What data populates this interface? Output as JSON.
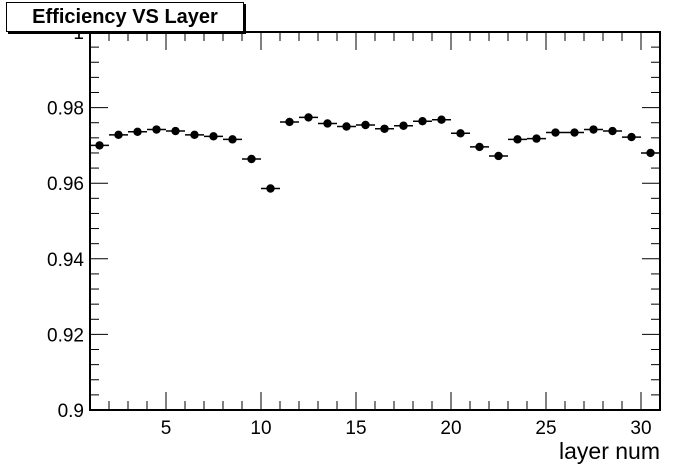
{
  "chart_data": {
    "type": "scatter",
    "title": "Efficiency VS Layer",
    "xlabel": "layer num",
    "ylabel": "",
    "xlim": [
      1,
      31
    ],
    "ylim": [
      0.9,
      1.0
    ],
    "xticks": [
      5,
      10,
      15,
      20,
      25,
      30
    ],
    "yticks": [
      0.9,
      0.92,
      0.94,
      0.96,
      0.98,
      1
    ],
    "ytick_labels": [
      "0.9",
      "0.92",
      "0.94",
      "0.96",
      "0.98",
      "1"
    ],
    "grid": false,
    "legend": "none",
    "marker_color": "#000000",
    "x_error_half_width": 0.5,
    "series": [
      {
        "x": [
          1.5,
          2.5,
          3.5,
          4.5,
          5.5,
          6.5,
          7.5,
          8.5,
          9.5,
          10.5,
          11.5,
          12.5,
          13.5,
          14.5,
          15.5,
          16.5,
          17.5,
          18.5,
          19.5,
          20.5,
          21.5,
          22.5,
          23.5,
          24.5,
          25.5,
          26.5,
          27.5,
          28.5,
          29.5,
          30.5
        ],
        "y": [
          0.97,
          0.9728,
          0.9736,
          0.9742,
          0.9738,
          0.9728,
          0.9724,
          0.9716,
          0.9664,
          0.9586,
          0.9762,
          0.9774,
          0.9758,
          0.975,
          0.9754,
          0.9744,
          0.9752,
          0.9764,
          0.9768,
          0.9732,
          0.9696,
          0.9672,
          0.9716,
          0.9718,
          0.9734,
          0.9734,
          0.9742,
          0.9738,
          0.9722,
          0.968
        ]
      }
    ]
  }
}
